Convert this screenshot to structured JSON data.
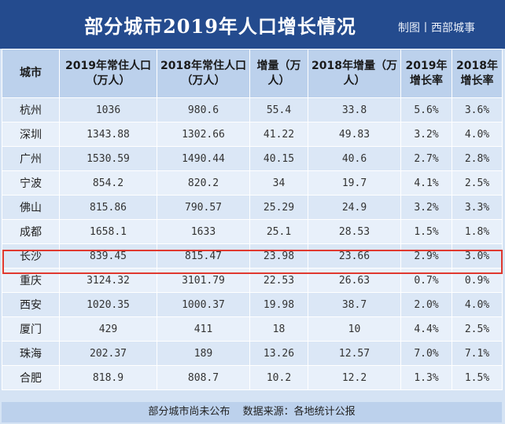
{
  "header": {
    "title": "部分城市2019年人口增长情况",
    "credit": "制图丨西部城事"
  },
  "table": {
    "columns": [
      "城市",
      "2019年常住人口（万人）",
      "2018年常住人口（万人）",
      "增量（万人）",
      "2018年增量（万人）",
      "2019年增长率",
      "2018年增长率"
    ],
    "rows": [
      [
        "杭州",
        "1036",
        "980.6",
        "55.4",
        "33.8",
        "5.6%",
        "3.6%"
      ],
      [
        "深圳",
        "1343.88",
        "1302.66",
        "41.22",
        "49.83",
        "3.2%",
        "4.0%"
      ],
      [
        "广州",
        "1530.59",
        "1490.44",
        "40.15",
        "40.6",
        "2.7%",
        "2.8%"
      ],
      [
        "宁波",
        "854.2",
        "820.2",
        "34",
        "19.7",
        "4.1%",
        "2.5%"
      ],
      [
        "佛山",
        "815.86",
        "790.57",
        "25.29",
        "24.9",
        "3.2%",
        "3.3%"
      ],
      [
        "成都",
        "1658.1",
        "1633",
        "25.1",
        "28.53",
        "1.5%",
        "1.8%"
      ],
      [
        "长沙",
        "839.45",
        "815.47",
        "23.98",
        "23.66",
        "2.9%",
        "3.0%"
      ],
      [
        "重庆",
        "3124.32",
        "3101.79",
        "22.53",
        "26.63",
        "0.7%",
        "0.9%"
      ],
      [
        "西安",
        "1020.35",
        "1000.37",
        "19.98",
        "38.7",
        "2.0%",
        "4.0%"
      ],
      [
        "厦门",
        "429",
        "411",
        "18",
        "10",
        "4.4%",
        "2.5%"
      ],
      [
        "珠海",
        "202.37",
        "189",
        "13.26",
        "12.57",
        "7.0%",
        "7.1%"
      ],
      [
        "合肥",
        "818.9",
        "808.7",
        "10.2",
        "12.2",
        "1.3%",
        "1.5%"
      ]
    ],
    "highlight_city": "长沙"
  },
  "footer": {
    "note": "部分城市尚未公布",
    "source": "数据来源：各地统计公报"
  },
  "colors": {
    "title_bar": "#244b8e",
    "header_cells": "#bcd1ec",
    "highlight_border": "#e0392f"
  }
}
